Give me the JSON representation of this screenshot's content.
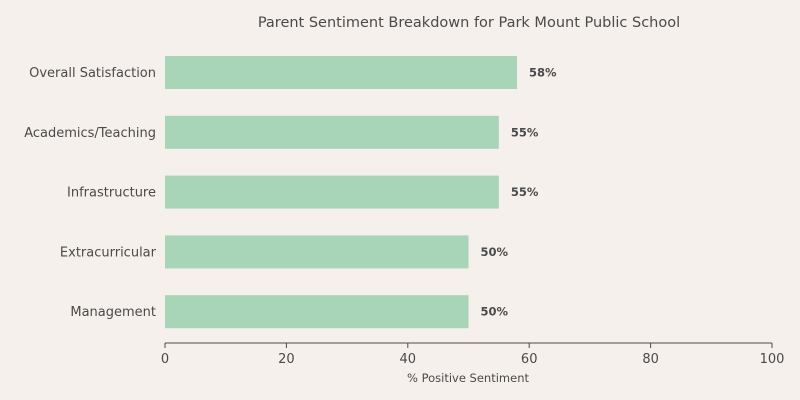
{
  "chart_data": {
    "type": "bar",
    "orientation": "horizontal",
    "title": "Parent Sentiment Breakdown for Park Mount Public School",
    "xlabel": "% Positive Sentiment",
    "ylabel": "",
    "categories": [
      "Overall Satisfaction",
      "Academics/Teaching",
      "Infrastructure",
      "Extracurricular",
      "Management"
    ],
    "values": [
      58,
      55,
      55,
      50,
      50
    ],
    "value_labels": [
      "58%",
      "55%",
      "55%",
      "50%",
      "50%"
    ],
    "xlim": [
      0,
      100
    ],
    "xticks": [
      "0",
      "20",
      "40",
      "60",
      "80",
      "100"
    ],
    "grid": false,
    "legend": "none",
    "colors": {
      "bar": "#a8d4b8",
      "text": "#4a4a4a",
      "axis": "#4a4a4a",
      "background": "#f5f0ec"
    }
  }
}
